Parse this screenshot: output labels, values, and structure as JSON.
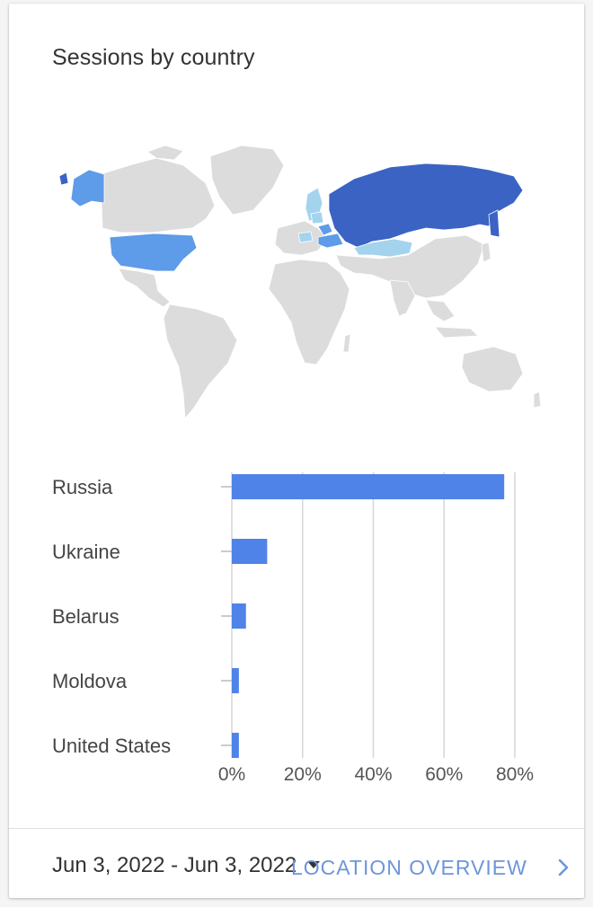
{
  "card": {
    "title": "Sessions by country"
  },
  "map_colors": {
    "land": "#dcdcdc",
    "border": "#ffffff",
    "top": "#3a63c4",
    "mid": "#5e9be8",
    "low": "#a4d3ee"
  },
  "chart_data": {
    "type": "bar",
    "orientation": "horizontal",
    "categories": [
      "Russia",
      "Ukraine",
      "Belarus",
      "Moldova",
      "United States"
    ],
    "series": [
      {
        "values": [
          77,
          10,
          4,
          2,
          2
        ]
      }
    ],
    "x_ticks": [
      "0%",
      "20%",
      "40%",
      "60%",
      "80%"
    ],
    "xlim": [
      0,
      80
    ],
    "grid": true,
    "bar_color": "#5083e8"
  },
  "footer": {
    "date_range": "Jun 3, 2022 - Jun 3, 2022",
    "link_label": "LOCATION OVERVIEW"
  }
}
